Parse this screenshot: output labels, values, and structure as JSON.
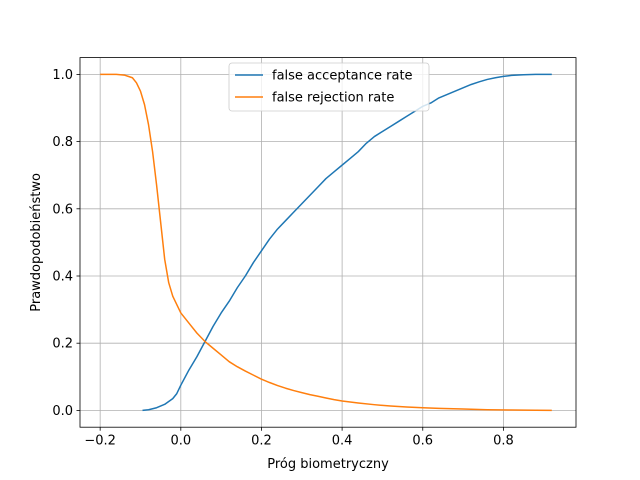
{
  "chart_data": {
    "type": "line",
    "title": "",
    "xlabel": "Próg biometryczny",
    "ylabel": "Prawdopodobieństwo",
    "xlim": [
      -0.25,
      0.98
    ],
    "ylim": [
      -0.05,
      1.05
    ],
    "x_ticks": [
      -0.2,
      0.0,
      0.2,
      0.4,
      0.6,
      0.8
    ],
    "x_tick_labels": [
      "−0.2",
      "0.0",
      "0.2",
      "0.4",
      "0.6",
      "0.8"
    ],
    "y_ticks": [
      0.0,
      0.2,
      0.4,
      0.6,
      0.8,
      1.0
    ],
    "y_tick_labels": [
      "0.0",
      "0.2",
      "0.4",
      "0.6",
      "0.8",
      "1.0"
    ],
    "grid": true,
    "legend_position": "top-center",
    "series": [
      {
        "name": "false acceptance rate",
        "color": "#1f77b4",
        "points": [
          [
            -0.095,
            0.0
          ],
          [
            -0.08,
            0.002
          ],
          [
            -0.06,
            0.008
          ],
          [
            -0.04,
            0.018
          ],
          [
            -0.02,
            0.035
          ],
          [
            -0.01,
            0.05
          ],
          [
            0.0,
            0.075
          ],
          [
            0.02,
            0.12
          ],
          [
            0.04,
            0.16
          ],
          [
            0.06,
            0.205
          ],
          [
            0.08,
            0.25
          ],
          [
            0.1,
            0.29
          ],
          [
            0.12,
            0.325
          ],
          [
            0.14,
            0.365
          ],
          [
            0.16,
            0.4
          ],
          [
            0.18,
            0.44
          ],
          [
            0.2,
            0.475
          ],
          [
            0.22,
            0.51
          ],
          [
            0.24,
            0.54
          ],
          [
            0.26,
            0.565
          ],
          [
            0.28,
            0.59
          ],
          [
            0.3,
            0.615
          ],
          [
            0.32,
            0.64
          ],
          [
            0.34,
            0.665
          ],
          [
            0.36,
            0.69
          ],
          [
            0.38,
            0.71
          ],
          [
            0.4,
            0.73
          ],
          [
            0.42,
            0.75
          ],
          [
            0.44,
            0.77
          ],
          [
            0.46,
            0.795
          ],
          [
            0.48,
            0.815
          ],
          [
            0.5,
            0.83
          ],
          [
            0.52,
            0.845
          ],
          [
            0.54,
            0.86
          ],
          [
            0.56,
            0.875
          ],
          [
            0.58,
            0.89
          ],
          [
            0.6,
            0.905
          ],
          [
            0.62,
            0.915
          ],
          [
            0.64,
            0.93
          ],
          [
            0.66,
            0.94
          ],
          [
            0.68,
            0.95
          ],
          [
            0.7,
            0.96
          ],
          [
            0.72,
            0.97
          ],
          [
            0.74,
            0.978
          ],
          [
            0.76,
            0.985
          ],
          [
            0.78,
            0.99
          ],
          [
            0.8,
            0.994
          ],
          [
            0.82,
            0.997
          ],
          [
            0.85,
            0.999
          ],
          [
            0.88,
            1.0
          ],
          [
            0.92,
            1.0
          ]
        ]
      },
      {
        "name": "false rejection rate",
        "color": "#ff7f0e",
        "points": [
          [
            -0.2,
            1.0
          ],
          [
            -0.16,
            1.0
          ],
          [
            -0.14,
            0.998
          ],
          [
            -0.12,
            0.99
          ],
          [
            -0.11,
            0.975
          ],
          [
            -0.1,
            0.95
          ],
          [
            -0.09,
            0.91
          ],
          [
            -0.08,
            0.85
          ],
          [
            -0.07,
            0.77
          ],
          [
            -0.06,
            0.67
          ],
          [
            -0.05,
            0.56
          ],
          [
            -0.04,
            0.45
          ],
          [
            -0.03,
            0.38
          ],
          [
            -0.02,
            0.34
          ],
          [
            -0.01,
            0.315
          ],
          [
            0.0,
            0.29
          ],
          [
            0.02,
            0.26
          ],
          [
            0.04,
            0.23
          ],
          [
            0.06,
            0.205
          ],
          [
            0.08,
            0.185
          ],
          [
            0.1,
            0.165
          ],
          [
            0.12,
            0.145
          ],
          [
            0.14,
            0.13
          ],
          [
            0.16,
            0.117
          ],
          [
            0.18,
            0.105
          ],
          [
            0.2,
            0.093
          ],
          [
            0.22,
            0.083
          ],
          [
            0.24,
            0.074
          ],
          [
            0.26,
            0.066
          ],
          [
            0.28,
            0.059
          ],
          [
            0.3,
            0.053
          ],
          [
            0.32,
            0.047
          ],
          [
            0.34,
            0.042
          ],
          [
            0.36,
            0.037
          ],
          [
            0.38,
            0.032
          ],
          [
            0.4,
            0.028
          ],
          [
            0.44,
            0.022
          ],
          [
            0.48,
            0.017
          ],
          [
            0.52,
            0.013
          ],
          [
            0.56,
            0.01
          ],
          [
            0.6,
            0.008
          ],
          [
            0.64,
            0.006
          ],
          [
            0.7,
            0.004
          ],
          [
            0.76,
            0.002
          ],
          [
            0.82,
            0.001
          ],
          [
            0.88,
            0.0005
          ],
          [
            0.92,
            0.0
          ]
        ]
      }
    ]
  }
}
